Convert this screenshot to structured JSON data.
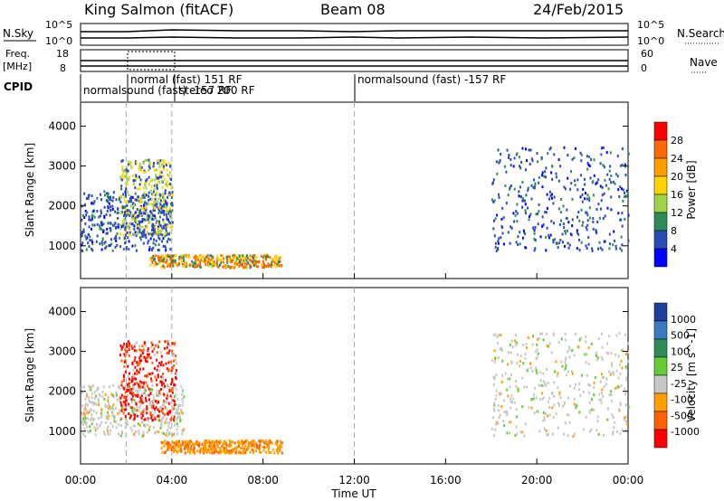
{
  "header": {
    "station": "King Salmon (fitACF)",
    "beam": "Beam 08",
    "date": "24/Feb/2015"
  },
  "top_panel": {
    "nsky_label": "N.Sky",
    "nsearch_label": "N.Search",
    "ticks_left": [
      "10^5",
      "10^0"
    ],
    "ticks_right": [
      "10^5",
      "10^0"
    ],
    "freq_label_1": "Freq.",
    "freq_label_2": "[MHz]",
    "freq_ticks": [
      "18",
      "8"
    ],
    "nave_label": "Nave",
    "nave_ticks": [
      "60",
      "0"
    ],
    "cpid_label": "CPID",
    "cpid_entries": [
      "normalsound (fast) -157 RF",
      "normal (fast) 151 RF",
      "normalsound (fast) -157 RF",
      "stereo 200 RF"
    ],
    "cpid_entry_main": "normalsound (fast) -157 RF"
  },
  "chart_data": [
    {
      "type": "heatmap",
      "title": "",
      "xlabel": "Time UT",
      "ylabel": "Slant Range [km]",
      "xlim_hours": [
        0,
        24
      ],
      "x_tick_labels": [
        "00:00",
        "04:00",
        "08:00",
        "12:00",
        "16:00",
        "20:00",
        "00:00"
      ],
      "ylim": [
        180,
        4600
      ],
      "y_tick_labels": [
        "1000",
        "2000",
        "3000",
        "4000"
      ],
      "y_ticks": [
        1000,
        2000,
        3000,
        4000
      ],
      "colorbar_label": "Power [dB]",
      "colorbar_ticks": [
        "28",
        "24",
        "20",
        "16",
        "12",
        "8",
        "4"
      ],
      "colorbar_colors": [
        "#ff0000",
        "#ff6a00",
        "#ff9c00",
        "#ffd400",
        "#9ed34a",
        "#2e8b57",
        "#2a4db5",
        "#0000ff"
      ],
      "regions": [
        {
          "time_h": [
            0.0,
            4.0
          ],
          "range_km": [
            900,
            2400
          ],
          "level": "low-mid"
        },
        {
          "time_h": [
            1.7,
            4.0
          ],
          "range_km": [
            1300,
            3200
          ],
          "level": "mid-high"
        },
        {
          "time_h": [
            3.0,
            8.8
          ],
          "range_km": [
            480,
            800
          ],
          "level": "high"
        },
        {
          "time_h": [
            18.0,
            24.0
          ],
          "range_km": [
            900,
            3500
          ],
          "level": "low-mid"
        }
      ]
    },
    {
      "type": "heatmap",
      "title": "",
      "xlabel": "Time UT",
      "ylabel": "Slant Range [km]",
      "xlim_hours": [
        0,
        24
      ],
      "x_tick_labels": [
        "00:00",
        "04:00",
        "08:00",
        "12:00",
        "16:00",
        "20:00",
        "00:00"
      ],
      "ylim": [
        180,
        4600
      ],
      "y_tick_labels": [
        "1000",
        "2000",
        "3000",
        "4000"
      ],
      "y_ticks": [
        1000,
        2000,
        3000,
        4000
      ],
      "colorbar_label": "Velocity [m s^-1]",
      "colorbar_ticks": [
        "1000",
        "500",
        "100",
        "25",
        "-25",
        "-100",
        "-500",
        "-1000"
      ],
      "colorbar_colors": [
        "#1f3f9f",
        "#3a7abf",
        "#2e8b57",
        "#66cc33",
        "#c8c8c8",
        "#ffa000",
        "#ff6000",
        "#ff0000"
      ],
      "regions": [
        {
          "time_h": [
            0.0,
            4.5
          ],
          "range_km": [
            900,
            2200
          ],
          "level": "near-zero"
        },
        {
          "time_h": [
            1.7,
            4.2
          ],
          "range_km": [
            1300,
            3300
          ],
          "level": "negative-large"
        },
        {
          "time_h": [
            3.5,
            8.8
          ],
          "range_km": [
            480,
            800
          ],
          "level": "negative-mid"
        },
        {
          "time_h": [
            18.0,
            24.0
          ],
          "range_km": [
            900,
            3500
          ],
          "level": "near-zero"
        }
      ]
    }
  ]
}
